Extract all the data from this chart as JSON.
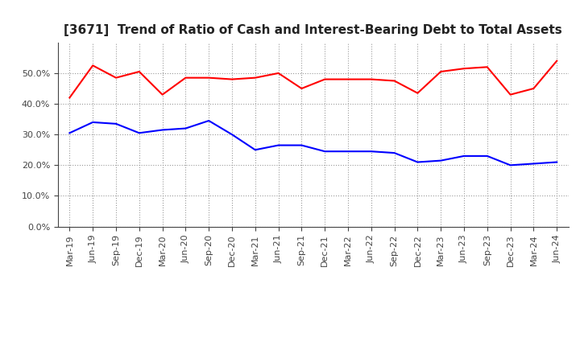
{
  "title": "[3671]  Trend of Ratio of Cash and Interest-Bearing Debt to Total Assets",
  "x_labels": [
    "Mar-19",
    "Jun-19",
    "Sep-19",
    "Dec-19",
    "Mar-20",
    "Jun-20",
    "Sep-20",
    "Dec-20",
    "Mar-21",
    "Jun-21",
    "Sep-21",
    "Dec-21",
    "Mar-22",
    "Jun-22",
    "Sep-22",
    "Dec-22",
    "Mar-23",
    "Jun-23",
    "Sep-23",
    "Dec-23",
    "Mar-24",
    "Jun-24"
  ],
  "cash": [
    42.0,
    52.5,
    48.5,
    50.5,
    43.0,
    48.5,
    48.5,
    48.0,
    48.5,
    50.0,
    45.0,
    48.0,
    48.0,
    48.0,
    47.5,
    43.5,
    50.5,
    51.5,
    52.0,
    43.0,
    45.0,
    54.0
  ],
  "ibd": [
    30.5,
    34.0,
    33.5,
    30.5,
    31.5,
    32.0,
    34.5,
    30.0,
    25.0,
    26.5,
    26.5,
    24.5,
    24.5,
    24.5,
    24.0,
    21.0,
    21.5,
    23.0,
    23.0,
    20.0,
    20.5,
    21.0
  ],
  "cash_color": "#ff0000",
  "ibd_color": "#0000ff",
  "background_color": "#ffffff",
  "plot_bg_color": "#ffffff",
  "grid_color": "#999999",
  "ylim": [
    0,
    60
  ],
  "yticks": [
    0,
    10,
    20,
    30,
    40,
    50
  ],
  "title_fontsize": 11,
  "tick_fontsize": 8,
  "legend_fontsize": 10
}
